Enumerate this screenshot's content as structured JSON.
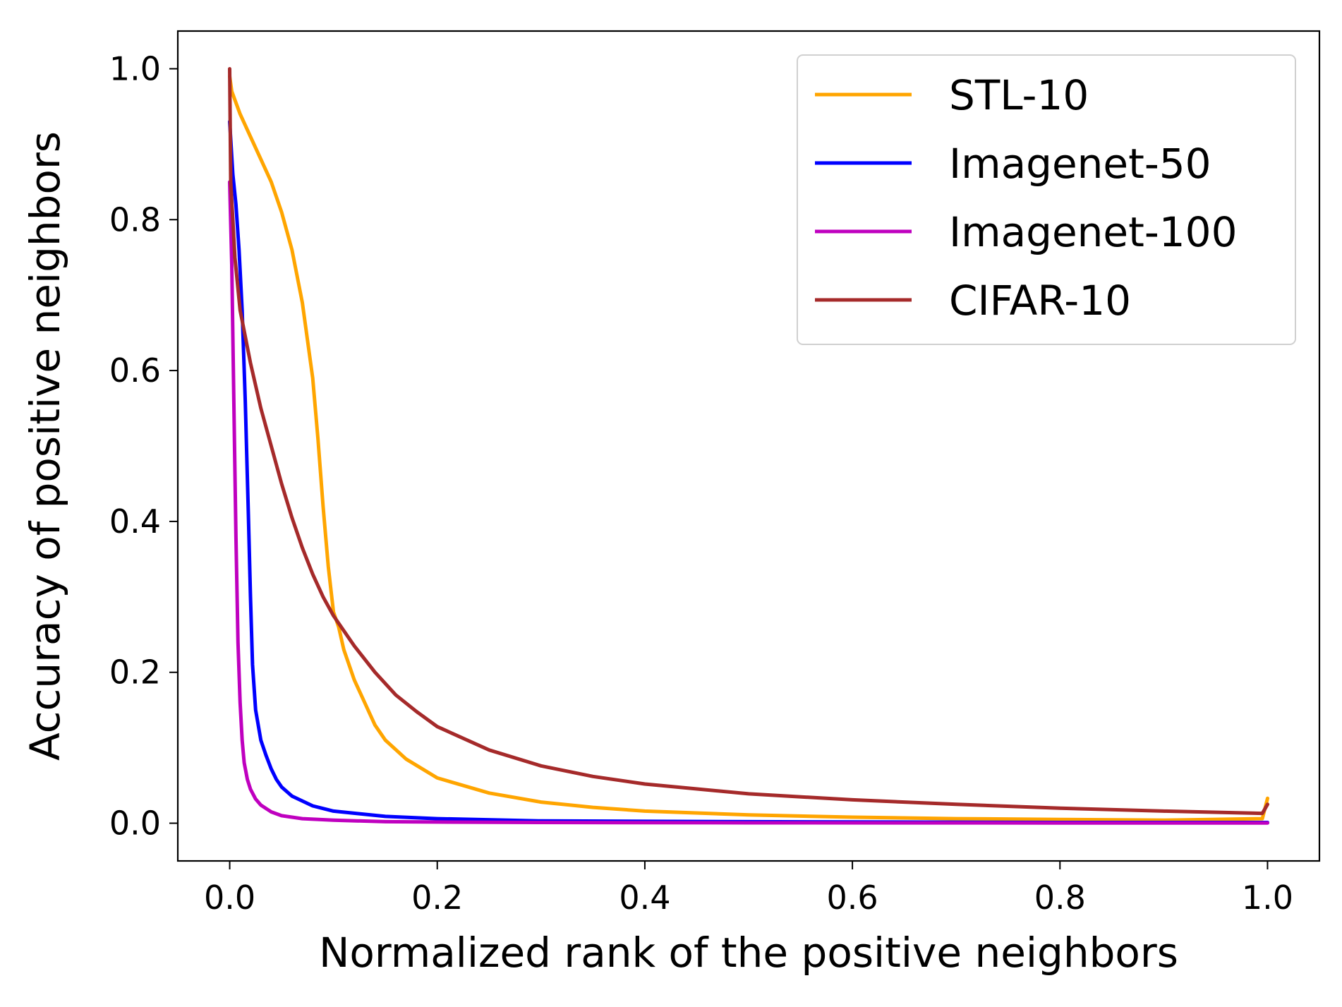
{
  "chart_data": {
    "type": "line",
    "title": "",
    "xlabel": "Normalized rank of the positive neighbors",
    "ylabel": "Accuracy of positive neighbors",
    "xlim": [
      -0.05,
      1.05
    ],
    "ylim": [
      -0.05,
      1.05
    ],
    "xticks": [
      0.0,
      0.2,
      0.4,
      0.6,
      0.8,
      1.0
    ],
    "yticks": [
      0.0,
      0.2,
      0.4,
      0.6,
      0.8,
      1.0
    ],
    "xtick_labels": [
      "0.0",
      "0.2",
      "0.4",
      "0.6",
      "0.8",
      "1.0"
    ],
    "ytick_labels": [
      "0.0",
      "0.2",
      "0.4",
      "0.6",
      "0.8",
      "1.0"
    ],
    "grid": false,
    "legend_position": "top-right",
    "series": [
      {
        "name": "STL-10",
        "color": "#FFA500",
        "x": [
          0.0,
          0.002,
          0.01,
          0.02,
          0.03,
          0.04,
          0.05,
          0.06,
          0.07,
          0.08,
          0.085,
          0.09,
          0.095,
          0.1,
          0.105,
          0.11,
          0.12,
          0.13,
          0.14,
          0.15,
          0.17,
          0.2,
          0.25,
          0.3,
          0.35,
          0.4,
          0.5,
          0.6,
          0.7,
          0.8,
          0.9,
          0.995,
          1.0
        ],
        "y": [
          0.99,
          0.97,
          0.94,
          0.91,
          0.88,
          0.85,
          0.81,
          0.76,
          0.69,
          0.59,
          0.51,
          0.42,
          0.34,
          0.28,
          0.26,
          0.23,
          0.19,
          0.16,
          0.13,
          0.11,
          0.085,
          0.06,
          0.04,
          0.028,
          0.021,
          0.016,
          0.011,
          0.008,
          0.006,
          0.005,
          0.004,
          0.006,
          0.033
        ]
      },
      {
        "name": "Imagenet-50",
        "color": "#0000FF",
        "x": [
          0.0,
          0.003,
          0.006,
          0.009,
          0.012,
          0.015,
          0.018,
          0.02,
          0.022,
          0.025,
          0.03,
          0.035,
          0.04,
          0.045,
          0.05,
          0.06,
          0.08,
          0.1,
          0.15,
          0.2,
          0.3,
          0.5,
          0.8,
          1.0
        ],
        "y": [
          0.93,
          0.86,
          0.82,
          0.76,
          0.68,
          0.56,
          0.41,
          0.3,
          0.21,
          0.15,
          0.11,
          0.09,
          0.072,
          0.058,
          0.048,
          0.036,
          0.023,
          0.016,
          0.009,
          0.006,
          0.003,
          0.002,
          0.001,
          0.001
        ]
      },
      {
        "name": "Imagenet-100",
        "color": "#BF00BF",
        "x": [
          0.0,
          0.002,
          0.004,
          0.006,
          0.008,
          0.01,
          0.012,
          0.014,
          0.017,
          0.02,
          0.025,
          0.03,
          0.04,
          0.05,
          0.07,
          0.1,
          0.15,
          0.2,
          0.3,
          0.5,
          0.8,
          1.0
        ],
        "y": [
          0.85,
          0.74,
          0.56,
          0.38,
          0.24,
          0.16,
          0.11,
          0.08,
          0.058,
          0.045,
          0.032,
          0.024,
          0.015,
          0.01,
          0.006,
          0.004,
          0.002,
          0.0015,
          0.001,
          0.0005,
          0.0003,
          0.0003
        ]
      },
      {
        "name": "CIFAR-10",
        "color": "#A52A2A",
        "x": [
          0.0,
          0.001,
          0.005,
          0.01,
          0.02,
          0.03,
          0.04,
          0.05,
          0.06,
          0.07,
          0.08,
          0.09,
          0.1,
          0.12,
          0.14,
          0.16,
          0.18,
          0.2,
          0.25,
          0.3,
          0.35,
          0.4,
          0.5,
          0.6,
          0.7,
          0.8,
          0.9,
          0.995,
          1.0
        ],
        "y": [
          1.0,
          0.85,
          0.75,
          0.68,
          0.61,
          0.55,
          0.5,
          0.45,
          0.405,
          0.365,
          0.33,
          0.3,
          0.275,
          0.235,
          0.2,
          0.17,
          0.148,
          0.128,
          0.097,
          0.076,
          0.062,
          0.052,
          0.039,
          0.031,
          0.025,
          0.02,
          0.016,
          0.013,
          0.025
        ]
      }
    ]
  }
}
